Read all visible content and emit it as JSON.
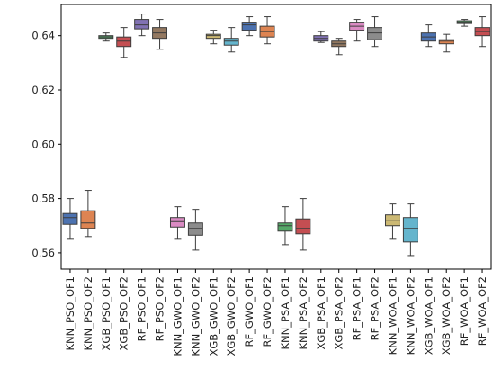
{
  "chart_data": {
    "type": "box",
    "title": "",
    "xlabel": "",
    "ylabel": "",
    "ylim": [
      0.554,
      0.6515
    ],
    "yticks": [
      0.56,
      0.58,
      0.6,
      0.62,
      0.64
    ],
    "ytick_labels": [
      "0.56",
      "0.58",
      "0.60",
      "0.62",
      "0.64"
    ],
    "grid": false,
    "categories": [
      "KNN_PSO_OF1",
      "KNN_PSO_OF2",
      "XGB_PSO_OF1",
      "XGB_PSO_OF2",
      "RF_PSO_OF1",
      "RF_PSO_OF2",
      "KNN_GWO_OF1",
      "KNN_GWO_OF2",
      "XGB_GWO_OF1",
      "XGB_GWO_OF2",
      "RF_GWO_OF1",
      "RF_GWO_OF2",
      "KNN_PSA_OF1",
      "KNN_PSA_OF2",
      "XGB_PSA_OF1",
      "XGB_PSA_OF2",
      "RF_PSA_OF1",
      "RF_PSA_OF2",
      "KNN_WOA_OF1",
      "KNN_WOA_OF2",
      "XGB_WOA_OF1",
      "XGB_WOA_OF2",
      "RF_WOA_OF1",
      "RF_WOA_OF2"
    ],
    "boxes": [
      {
        "min": 0.565,
        "q1": 0.5705,
        "median": 0.573,
        "q3": 0.5745,
        "max": 0.58,
        "color": "#4c72b0"
      },
      {
        "min": 0.566,
        "q1": 0.569,
        "median": 0.571,
        "q3": 0.5755,
        "max": 0.583,
        "color": "#dd8452"
      },
      {
        "min": 0.638,
        "q1": 0.639,
        "median": 0.6395,
        "q3": 0.64,
        "max": 0.641,
        "color": "#55a868"
      },
      {
        "min": 0.632,
        "q1": 0.636,
        "median": 0.638,
        "q3": 0.6395,
        "max": 0.643,
        "color": "#c44e52"
      },
      {
        "min": 0.64,
        "q1": 0.6425,
        "median": 0.644,
        "q3": 0.646,
        "max": 0.648,
        "color": "#8172b3"
      },
      {
        "min": 0.635,
        "q1": 0.639,
        "median": 0.641,
        "q3": 0.643,
        "max": 0.646,
        "color": "#937860"
      },
      {
        "min": 0.565,
        "q1": 0.5695,
        "median": 0.5715,
        "q3": 0.573,
        "max": 0.577,
        "color": "#da8bc3"
      },
      {
        "min": 0.561,
        "q1": 0.5665,
        "median": 0.569,
        "q3": 0.571,
        "max": 0.576,
        "color": "#8c8c8c"
      },
      {
        "min": 0.637,
        "q1": 0.639,
        "median": 0.64,
        "q3": 0.6405,
        "max": 0.642,
        "color": "#ccb974"
      },
      {
        "min": 0.634,
        "q1": 0.6365,
        "median": 0.638,
        "q3": 0.639,
        "max": 0.643,
        "color": "#64b5cd"
      },
      {
        "min": 0.64,
        "q1": 0.642,
        "median": 0.644,
        "q3": 0.645,
        "max": 0.647,
        "color": "#4c72b0"
      },
      {
        "min": 0.637,
        "q1": 0.6395,
        "median": 0.6415,
        "q3": 0.6435,
        "max": 0.647,
        "color": "#dd8452"
      },
      {
        "min": 0.563,
        "q1": 0.568,
        "median": 0.57,
        "q3": 0.571,
        "max": 0.577,
        "color": "#55a868"
      },
      {
        "min": 0.561,
        "q1": 0.567,
        "median": 0.569,
        "q3": 0.5725,
        "max": 0.58,
        "color": "#c44e52"
      },
      {
        "min": 0.6375,
        "q1": 0.638,
        "median": 0.639,
        "q3": 0.64,
        "max": 0.6415,
        "color": "#8172b3"
      },
      {
        "min": 0.633,
        "q1": 0.636,
        "median": 0.637,
        "q3": 0.638,
        "max": 0.639,
        "color": "#937860"
      },
      {
        "min": 0.638,
        "q1": 0.642,
        "median": 0.6435,
        "q3": 0.645,
        "max": 0.646,
        "color": "#da8bc3"
      },
      {
        "min": 0.636,
        "q1": 0.6385,
        "median": 0.641,
        "q3": 0.643,
        "max": 0.647,
        "color": "#8c8c8c"
      },
      {
        "min": 0.565,
        "q1": 0.57,
        "median": 0.572,
        "q3": 0.574,
        "max": 0.578,
        "color": "#ccb974"
      },
      {
        "min": 0.559,
        "q1": 0.564,
        "median": 0.569,
        "q3": 0.573,
        "max": 0.578,
        "color": "#64b5cd"
      },
      {
        "min": 0.636,
        "q1": 0.638,
        "median": 0.6395,
        "q3": 0.641,
        "max": 0.644,
        "color": "#4c72b0"
      },
      {
        "min": 0.634,
        "q1": 0.637,
        "median": 0.638,
        "q3": 0.6385,
        "max": 0.6405,
        "color": "#dd8452"
      },
      {
        "min": 0.6435,
        "q1": 0.6445,
        "median": 0.645,
        "q3": 0.6455,
        "max": 0.646,
        "color": "#55a868"
      },
      {
        "min": 0.636,
        "q1": 0.64,
        "median": 0.6415,
        "q3": 0.643,
        "max": 0.647,
        "color": "#c44e52"
      }
    ]
  }
}
